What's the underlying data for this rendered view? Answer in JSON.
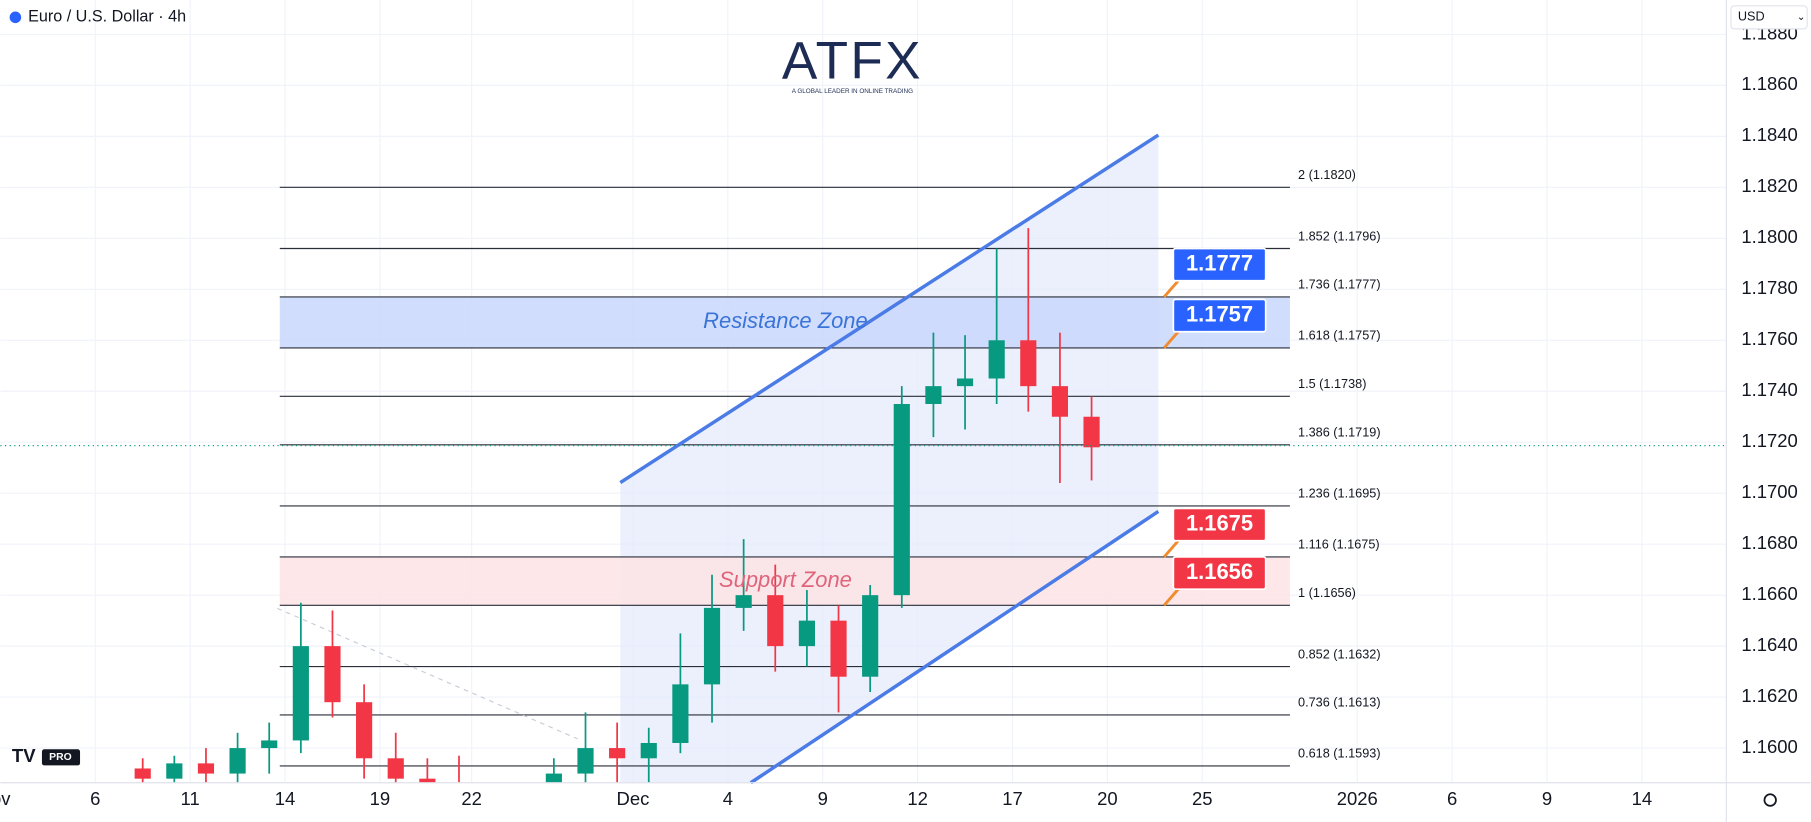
{
  "header": {
    "title": "Euro / U.S. Dollar · 4h",
    "currency": "USD",
    "logo": "ATFX",
    "tagline": "A GLOBAL LEADER IN ONLINE TRADING",
    "badge": "PRO"
  },
  "chart_data": {
    "type": "candlestick",
    "xlim": [
      0,
      54.57
    ],
    "xticks": [
      {
        "value": -0.2,
        "label": "Nov"
      },
      {
        "value": 3,
        "label": "6"
      },
      {
        "value": 6,
        "label": "11"
      },
      {
        "value": 9,
        "label": "14"
      },
      {
        "value": 12,
        "label": "19"
      },
      {
        "value": 14.9,
        "label": "22"
      },
      {
        "value": 20,
        "label": "Dec"
      },
      {
        "value": 23,
        "label": "4"
      },
      {
        "value": 26,
        "label": "9"
      },
      {
        "value": 29,
        "label": "12"
      },
      {
        "value": 32,
        "label": "17"
      },
      {
        "value": 35,
        "label": "20"
      },
      {
        "value": 38,
        "label": "25"
      },
      {
        "value": 42.9,
        "label": "2026"
      },
      {
        "value": 45.9,
        "label": "6"
      },
      {
        "value": 48.9,
        "label": "9"
      },
      {
        "value": 51.9,
        "label": "14"
      }
    ],
    "ylim": [
      1.15864,
      1.18935
    ],
    "yticks": [
      {
        "value": 1.16,
        "label": "1.1600"
      },
      {
        "value": 1.162,
        "label": "1.1620"
      },
      {
        "value": 1.164,
        "label": "1.1640"
      },
      {
        "value": 1.166,
        "label": "1.1660"
      },
      {
        "value": 1.168,
        "label": "1.1680"
      },
      {
        "value": 1.17,
        "label": "1.1700"
      },
      {
        "value": 1.172,
        "label": "1.1720"
      },
      {
        "value": 1.174,
        "label": "1.1740"
      },
      {
        "value": 1.176,
        "label": "1.1760"
      },
      {
        "value": 1.178,
        "label": "1.1780"
      },
      {
        "value": 1.18,
        "label": "1.1800"
      },
      {
        "value": 1.182,
        "label": "1.1820"
      },
      {
        "value": 1.184,
        "label": "1.1840"
      },
      {
        "value": 1.186,
        "label": "1.1860"
      },
      {
        "value": 1.188,
        "label": "1.1880"
      }
    ],
    "grid": true,
    "candles": {
      "up_color": "#089981",
      "down_color": "#f23645",
      "x": [
        4.5,
        5.5,
        6.5,
        7.5,
        8.5,
        9.5,
        10.5,
        11.5,
        12.5,
        13.5,
        14.5,
        15.5,
        16.5,
        17.5,
        18.5,
        19.5,
        20.5,
        21.5,
        22.5,
        23.5,
        24.5,
        25.5,
        26.5,
        27.5,
        28.5,
        29.5,
        30.5,
        31.5,
        32.5,
        33.5,
        34.5
      ],
      "open": [
        1.1592,
        1.1588,
        1.1594,
        1.159,
        1.16,
        1.1603,
        1.164,
        1.1618,
        1.1596,
        1.1588,
        1.1582,
        1.1578,
        1.157,
        1.1575,
        1.159,
        1.16,
        1.1596,
        1.1602,
        1.1625,
        1.1655,
        1.166,
        1.164,
        1.165,
        1.1628,
        1.166,
        1.1735,
        1.1742,
        1.1745,
        1.176,
        1.1742,
        1.173
      ],
      "high": [
        1.1596,
        1.1597,
        1.16,
        1.1606,
        1.161,
        1.1657,
        1.1654,
        1.1625,
        1.1606,
        1.1596,
        1.1597,
        1.1585,
        1.1582,
        1.1596,
        1.1614,
        1.161,
        1.1608,
        1.1645,
        1.1668,
        1.1682,
        1.1672,
        1.1662,
        1.1656,
        1.1664,
        1.1742,
        1.1763,
        1.1762,
        1.1796,
        1.1804,
        1.1763,
        1.1738
      ],
      "low": [
        1.1582,
        1.158,
        1.1585,
        1.1586,
        1.159,
        1.1598,
        1.1612,
        1.1588,
        1.158,
        1.1575,
        1.157,
        1.156,
        1.156,
        1.1568,
        1.1585,
        1.1582,
        1.158,
        1.1598,
        1.161,
        1.1646,
        1.163,
        1.1632,
        1.1614,
        1.1622,
        1.1655,
        1.1722,
        1.1725,
        1.1735,
        1.1732,
        1.1704,
        1.1705
      ],
      "close": [
        1.1588,
        1.1594,
        1.159,
        1.16,
        1.1603,
        1.164,
        1.1618,
        1.1596,
        1.1588,
        1.1582,
        1.1578,
        1.157,
        1.1575,
        1.159,
        1.16,
        1.1596,
        1.1602,
        1.1625,
        1.1655,
        1.166,
        1.164,
        1.165,
        1.1628,
        1.166,
        1.1735,
        1.1742,
        1.1745,
        1.176,
        1.1742,
        1.173,
        1.1718
      ]
    },
    "fib_levels": [
      {
        "value": 1.182,
        "label": "2 (1.1820)"
      },
      {
        "value": 1.1796,
        "label": "1.852 (1.1796)"
      },
      {
        "value": 1.1777,
        "label": "1.736 (1.1777)"
      },
      {
        "value": 1.1757,
        "label": "1.618 (1.1757)"
      },
      {
        "value": 1.1738,
        "label": "1.5 (1.1738)"
      },
      {
        "value": 1.1719,
        "label": "1.386 (1.1719)"
      },
      {
        "value": 1.1695,
        "label": "1.236 (1.1695)"
      },
      {
        "value": 1.1675,
        "label": "1.116 (1.1675)"
      },
      {
        "value": 1.1656,
        "label": "1 (1.1656)"
      },
      {
        "value": 1.1632,
        "label": "0.852 (1.1632)"
      },
      {
        "value": 1.1613,
        "label": "0.736 (1.1613)"
      },
      {
        "value": 1.1593,
        "label": "0.618 (1.1593)"
      }
    ],
    "zones": [
      {
        "name": "Resistance Zone",
        "low": 1.1757,
        "high": 1.1777,
        "fill": "#c9d7fb",
        "text_color": "#3a74d8"
      },
      {
        "name": "Support Zone",
        "low": 1.1656,
        "high": 1.1675,
        "fill": "#fde3e5",
        "text_color": "#e0647a"
      }
    ],
    "price_badges": [
      {
        "value": 1.1777,
        "color": "#2962ff"
      },
      {
        "value": 1.1757,
        "color": "#2962ff"
      },
      {
        "value": 1.1675,
        "color": "#f23645"
      },
      {
        "value": 1.1656,
        "color": "#f23645"
      }
    ]
  }
}
